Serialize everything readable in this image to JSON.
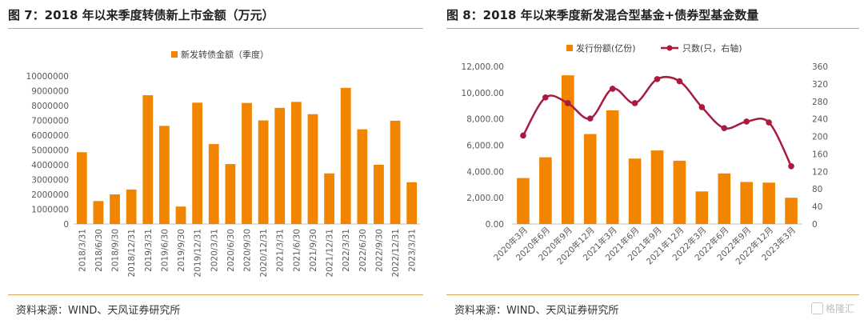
{
  "figures": [
    {
      "title": "图 7：2018 年以来季度转债新上市金额（万元）",
      "source": "资料来源：WIND、天风证券研究所"
    },
    {
      "title": "图 8：2018 年以来季度新发混合型基金+债券型基金数量",
      "source": "资料来源：WIND、天风证券研究所"
    }
  ],
  "watermark": "格隆汇",
  "colors": {
    "bar": "#f28500",
    "line": "#a81b3f",
    "rule": "#e8a05c"
  },
  "chart_data": [
    {
      "type": "bar",
      "categories": [
        "2018/3/31",
        "2018/6/30",
        "2018/9/30",
        "2018/12/31",
        "2019/3/31",
        "2019/6/30",
        "2019/9/30",
        "2019/12/31",
        "2020/3/31",
        "2020/6/30",
        "2020/9/30",
        "2020/12/31",
        "2021/3/31",
        "2021/6/30",
        "2021/9/30",
        "2021/12/31",
        "2022/3/31",
        "2022/6/30",
        "2022/9/30",
        "2022/12/31",
        "2023/3/31"
      ],
      "series": [
        {
          "name": "新发转债金额（季度）",
          "values": [
            4850000,
            1550000,
            2000000,
            2330000,
            8700000,
            6630000,
            1180000,
            8200000,
            5400000,
            4050000,
            8180000,
            7000000,
            7850000,
            8250000,
            7420000,
            3420000,
            9200000,
            6400000,
            4000000,
            6980000,
            2820000
          ]
        }
      ],
      "ylim": [
        0,
        10000000
      ],
      "yticks": [
        "0",
        "1000000",
        "2000000",
        "3000000",
        "4000000",
        "5000000",
        "6000000",
        "7000000",
        "8000000",
        "9000000",
        "10000000"
      ],
      "legend_position": "top",
      "grid": false
    },
    {
      "type": "bar+line",
      "categories": [
        "2020年3月",
        "2020年6月",
        "2020年9月",
        "2020年12月",
        "2021年3月",
        "2021年6月",
        "2021年9月",
        "2021年12月",
        "2022年3月",
        "2022年6月",
        "2022年9月",
        "2022年12月",
        "2023年3月"
      ],
      "series": [
        {
          "name": "发行份额(亿份)",
          "type": "bar",
          "axis": "left",
          "values": [
            3500,
            5080,
            11320,
            6850,
            8650,
            4980,
            5600,
            4820,
            2480,
            3850,
            3200,
            3150,
            2000
          ]
        },
        {
          "name": "只数(只，右轴)",
          "type": "line",
          "axis": "right",
          "values": [
            202,
            289,
            276,
            241,
            309,
            276,
            331,
            326,
            267,
            219,
            234,
            232,
            132
          ]
        }
      ],
      "ylim_left": [
        0,
        12000
      ],
      "yticks_left": [
        "0.00",
        "2,000.00",
        "4,000.00",
        "6,000.00",
        "8,000.00",
        "10,000.00",
        "12,000.00"
      ],
      "ylim_right": [
        0,
        360
      ],
      "yticks_right": [
        "0",
        "40",
        "80",
        "120",
        "160",
        "200",
        "240",
        "280",
        "320",
        "360"
      ],
      "legend_position": "top",
      "grid": false
    }
  ]
}
